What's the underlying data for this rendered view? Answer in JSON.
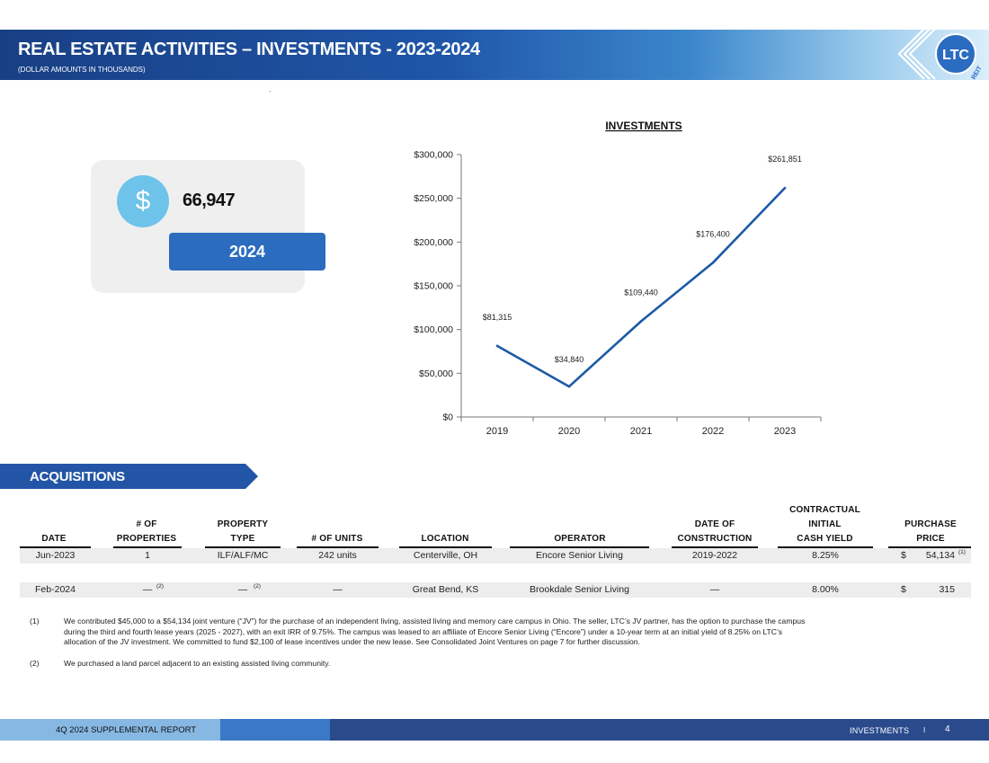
{
  "header": {
    "title": "REAL ESTATE ACTIVITIES – INVESTMENTS - 2023-2024",
    "subtitle": "(DOLLAR AMOUNTS IN THOUSANDS)",
    "logo_text": "LTC",
    "logo_sub": "REIT",
    "brand_color": "#1f56a8"
  },
  "stat": {
    "icon": "dollar-icon",
    "symbol": "$",
    "value": "66,947",
    "year": "2024"
  },
  "chart_data": {
    "type": "line",
    "title": "INVESTMENTS",
    "categories": [
      "2019",
      "2020",
      "2021",
      "2022",
      "2023"
    ],
    "values": [
      81315,
      34840,
      109440,
      176400,
      261851
    ],
    "data_labels": [
      "$81,315",
      "$34,840",
      "$109,440",
      "$176,400",
      "$261,851"
    ],
    "ylim": [
      0,
      300000
    ],
    "yticks": [
      0,
      50000,
      100000,
      150000,
      200000,
      250000,
      300000
    ],
    "ytick_labels": [
      "$0",
      "$50,000",
      "$100,000",
      "$150,000",
      "$200,000",
      "$250,000",
      "$300,000"
    ],
    "grid": false,
    "line_color": "#1b5aa6"
  },
  "acquisitions": {
    "title": "ACQUISITIONS",
    "headers": {
      "date": [
        "DATE"
      ],
      "properties": [
        "# OF",
        "PROPERTIES"
      ],
      "type": [
        "PROPERTY",
        "TYPE"
      ],
      "units": [
        "# OF UNITS"
      ],
      "location": [
        "LOCATION"
      ],
      "operator": [
        "OPERATOR"
      ],
      "construction": [
        "DATE OF",
        "CONSTRUCTION"
      ],
      "yield": [
        "CONTRACTUAL",
        "INITIAL",
        "CASH YIELD"
      ],
      "price": [
        "PURCHASE",
        "PRICE"
      ]
    },
    "rows": [
      {
        "date": "Jun-2023",
        "properties": "1",
        "type": "ILF/ALF/MC",
        "units": "242 units",
        "location": "Centerville, OH",
        "operator": "Encore Senior Living",
        "construction": "2019-2022",
        "yield": "8.25%",
        "price_symbol": "$",
        "price": "54,134",
        "price_note": "(1)"
      },
      {
        "date": "Feb-2024",
        "properties": "—",
        "properties_note": "(2)",
        "type": "—",
        "type_note": "(2)",
        "units": "—",
        "location": "Great Bend, KS",
        "operator": "Brookdale Senior Living",
        "construction": "—",
        "yield": "8.00%",
        "price_symbol": "$",
        "price": "315"
      }
    ]
  },
  "footnotes": [
    {
      "marker": "(1)",
      "lines": [
        "We contributed $45,000 to a $54,134 joint venture (“JV”) for the purchase of an independent living, assisted living and memory care campus in Ohio. The seller, LTC’s JV partner, has the option to purchase the campus",
        "during the third and fourth lease years (2025 - 2027), with an exit IRR of 9.75%. The campus was leased to an affiliate of Encore Senior Living (“Encore”) under a 10-year term at an initial yield of 8.25% on LTC’s",
        "allocation of the JV investment. We committed to fund $2,100 of lease incentives under the new lease. See Consolidated Joint Ventures on page 7 for further discussion."
      ]
    },
    {
      "marker": "(2)",
      "lines": [
        "We purchased a land parcel adjacent to an existing assisted living community."
      ]
    }
  ],
  "footer": {
    "report": "4Q 2024 SUPPLEMENTAL REPORT",
    "section": "INVESTMENTS",
    "separator": "I",
    "page": "4"
  }
}
